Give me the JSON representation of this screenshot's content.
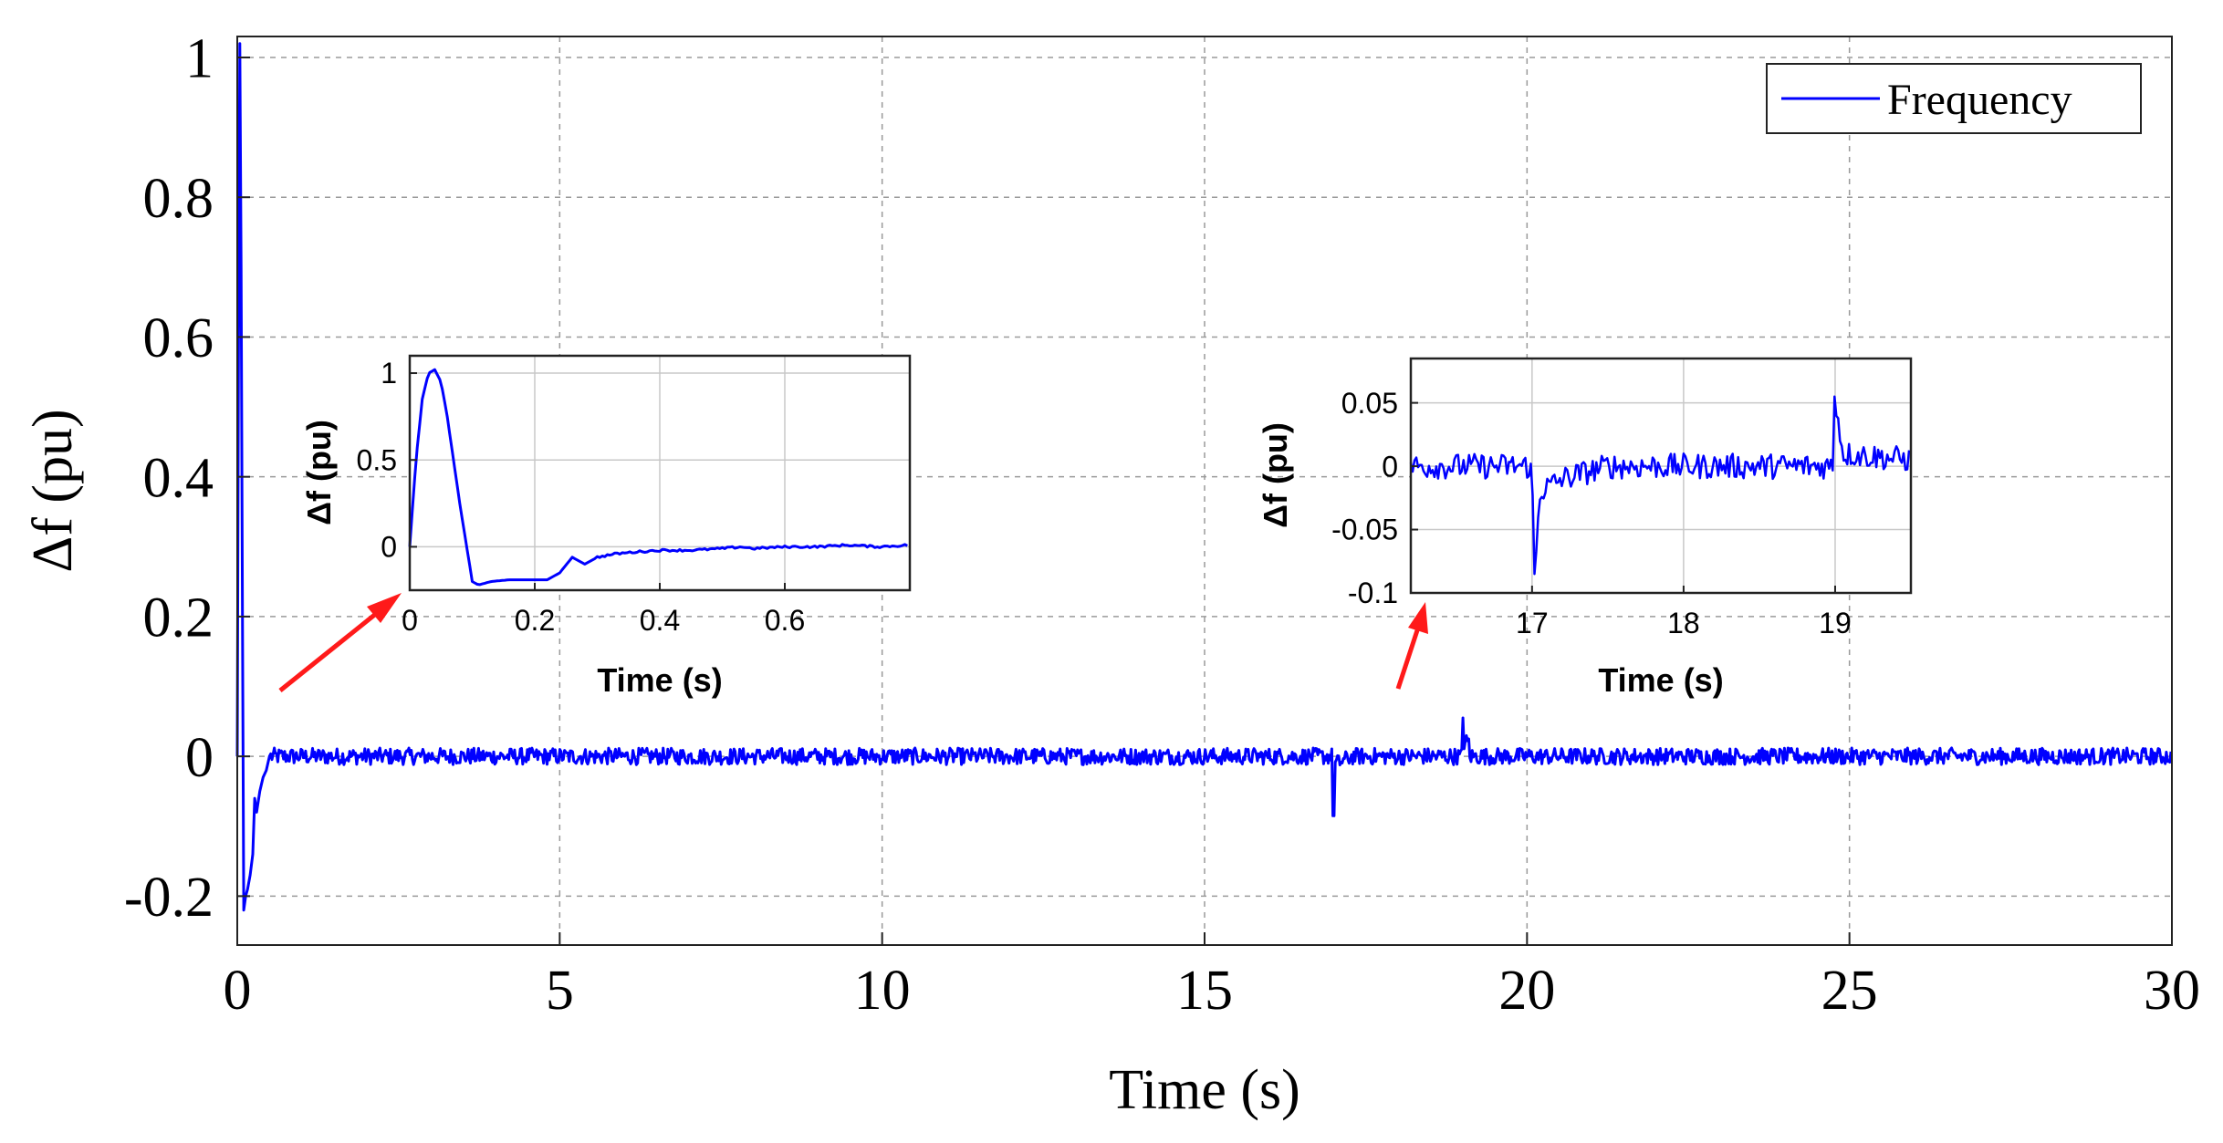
{
  "chart_data": [
    {
      "type": "line",
      "role": "main",
      "title": "",
      "xlabel": "Time (s)",
      "ylabel": "Δf (pu)",
      "xlim": [
        0,
        30
      ],
      "ylim": [
        -0.27,
        1.03
      ],
      "xticks": [
        0,
        5,
        10,
        15,
        20,
        25,
        30
      ],
      "xtick_labels": [
        "0",
        "5",
        "10",
        "15",
        "20",
        "25",
        "30"
      ],
      "yticks": [
        -0.2,
        0,
        0.2,
        0.4,
        0.6,
        0.8,
        1
      ],
      "ytick_labels": [
        "-0.2",
        "0",
        "0.2",
        "0.4",
        "0.6",
        "0.8",
        "1"
      ],
      "grid": true,
      "legend": {
        "position": "top-right",
        "entries": [
          "Frequency"
        ]
      },
      "series": [
        {
          "name": "Frequency",
          "color": "#0000ff",
          "description": "Spike to about 1.0 pu at t≈0.04 s, dip to about -0.22 pu near t≈0.1 s, recovery to 0 by t≈0.5 s, then noise of about ±0.01 pu around 0 with a downward spike of about -0.085 pu at t=17 s and an upward spike of about +0.055 pu at t=19 s",
          "key_points": [
            [
              0,
              0
            ],
            [
              0.04,
              1.02
            ],
            [
              0.1,
              -0.22
            ],
            [
              0.2,
              -0.17
            ],
            [
              0.3,
              -0.05
            ],
            [
              0.5,
              0
            ],
            [
              17.0,
              -0.085
            ],
            [
              19.0,
              0.055
            ],
            [
              30,
              0
            ]
          ],
          "noise_amplitude": 0.012
        }
      ]
    },
    {
      "type": "line",
      "role": "inset",
      "title": "",
      "xlabel": "Time (s)",
      "ylabel": "Δf (pu)",
      "xlim": [
        0,
        0.8
      ],
      "ylim": [
        -0.25,
        1.1
      ],
      "xticks": [
        0,
        0.2,
        0.4,
        0.6
      ],
      "xtick_labels": [
        "0",
        "0.2",
        "0.4",
        "0.6"
      ],
      "yticks": [
        0,
        0.5,
        1
      ],
      "ytick_labels": [
        "0",
        "0.5",
        "1"
      ],
      "grid": true,
      "series": [
        {
          "name": "Frequency",
          "color": "#0000ff",
          "x": [
            0,
            0.01,
            0.02,
            0.03,
            0.04,
            0.05,
            0.06,
            0.08,
            0.1,
            0.11,
            0.13,
            0.16,
            0.2,
            0.22,
            0.24,
            0.26,
            0.28,
            0.3,
            0.33,
            0.36,
            0.4,
            0.45,
            0.5,
            0.53,
            0.55,
            0.6,
            0.65,
            0.7,
            0.75,
            0.8
          ],
          "values": [
            0,
            0.5,
            0.85,
            1.0,
            1.02,
            0.95,
            0.75,
            0.25,
            -0.2,
            -0.22,
            -0.2,
            -0.19,
            -0.19,
            -0.19,
            -0.15,
            -0.06,
            -0.1,
            -0.06,
            -0.04,
            -0.03,
            -0.02,
            -0.02,
            -0.01,
            0.0,
            -0.01,
            0.0,
            0.0,
            0.01,
            0.0,
            0.01
          ]
        }
      ]
    },
    {
      "type": "line",
      "role": "inset",
      "title": "",
      "xlabel": "Time (s)",
      "ylabel": "Δf (pu)",
      "xlim": [
        16.2,
        19.5
      ],
      "ylim": [
        -0.1,
        0.085
      ],
      "xticks": [
        17,
        18,
        19
      ],
      "xtick_labels": [
        "17",
        "18",
        "19"
      ],
      "yticks": [
        -0.1,
        -0.05,
        0,
        0.05
      ],
      "ytick_labels": [
        "-0.1",
        "-0.05",
        "0",
        "0.05"
      ],
      "grid": true,
      "series": [
        {
          "name": "Frequency",
          "color": "#0000ff",
          "key_points": [
            [
              16.2,
              0
            ],
            [
              16.99,
              0.0
            ],
            [
              17.0,
              -0.015
            ],
            [
              17.02,
              -0.085
            ],
            [
              17.05,
              -0.02
            ],
            [
              17.2,
              -0.01
            ],
            [
              17.5,
              0.0
            ],
            [
              18.99,
              0.0
            ],
            [
              19.0,
              0.055
            ],
            [
              19.05,
              0.01
            ],
            [
              19.5,
              0.005
            ]
          ],
          "noise_amplitude": 0.01
        }
      ]
    }
  ]
}
